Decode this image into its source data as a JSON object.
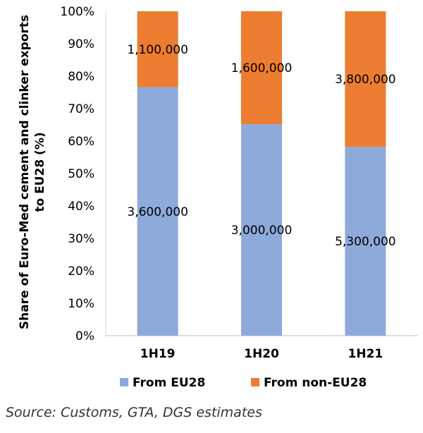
{
  "chart_data": {
    "type": "bar",
    "stacked": true,
    "categories": [
      "1H19",
      "1H20",
      "1H21"
    ],
    "series": [
      {
        "name": "From EU28",
        "color": "#8eaadb",
        "percent": [
          76.6,
          65.2,
          58.2
        ],
        "labels": [
          "3,600,000",
          "3,000,000",
          "5,300,000"
        ]
      },
      {
        "name": "From non-EU28",
        "color": "#ed7d31",
        "percent": [
          23.4,
          34.8,
          41.8
        ],
        "labels": [
          "1,100,000",
          "1,600,000",
          "3,800,000"
        ]
      }
    ],
    "ylabel": "Share of Euro-Med cement and clinker exports to EU28 (%)",
    "ylabel_lines": [
      "Share of Euro-Med cement and clinker exports",
      "to EU28 (%)"
    ],
    "ylim": [
      0,
      100
    ],
    "yticks": [
      "0%",
      "10%",
      "20%",
      "30%",
      "40%",
      "50%",
      "60%",
      "70%",
      "80%",
      "90%",
      "100%"
    ],
    "grid": false,
    "legend": "bottom"
  },
  "source": "Source: Customs, GTA, DGS estimates"
}
